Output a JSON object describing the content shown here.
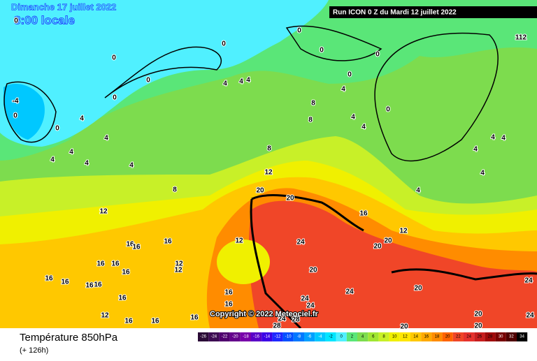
{
  "header": {
    "date": "Dimanche 17 juillet 2022",
    "time": "8:00 locale",
    "run": "Run ICON 0 Z du Mardi 12 juillet 2022"
  },
  "copyright": "Copyright © 2022 Meteociel.fr",
  "footer": {
    "title": "Température 850hPa",
    "lead": "(+ 126h)"
  },
  "legend": {
    "ticks": [
      -26,
      -24,
      -22,
      -20,
      -18,
      -16,
      -14,
      -12,
      -10,
      -8,
      -6,
      -4,
      -2,
      0,
      2,
      4,
      6,
      8,
      10,
      12,
      14,
      16,
      18,
      20,
      22,
      24,
      26,
      28,
      30,
      32,
      34
    ],
    "colors": [
      "#2a0a36",
      "#3c0a52",
      "#50006e",
      "#64008c",
      "#7800aa",
      "#5a00c8",
      "#3c00e6",
      "#1e28ff",
      "#0050ff",
      "#0078ff",
      "#00a0ff",
      "#00c8ff",
      "#00e6ff",
      "#50f0ff",
      "#5ae678",
      "#7ddc4e",
      "#a0e632",
      "#c8f028",
      "#f0f000",
      "#ffe600",
      "#ffc800",
      "#ffaa00",
      "#ff8c00",
      "#ff6400",
      "#f04628",
      "#e6322d",
      "#c81e1e",
      "#a00a0a",
      "#780000",
      "#500000",
      "#000000"
    ]
  },
  "contour_labels": [
    0,
    0,
    0,
    0,
    0,
    0,
    0,
    0,
    0,
    0,
    0,
    0,
    -4,
    4,
    4,
    4,
    4,
    4,
    4,
    4,
    4,
    4,
    4,
    4,
    4,
    4,
    4,
    4,
    4,
    4,
    8,
    8,
    8,
    8,
    12,
    12,
    12,
    12,
    12,
    12,
    12,
    16,
    16,
    16,
    16,
    16,
    16,
    16,
    16,
    16,
    16,
    16,
    16,
    16,
    16,
    16,
    16,
    16,
    20,
    20,
    20,
    20,
    20,
    20,
    20,
    20,
    20,
    24,
    24,
    24,
    24,
    24,
    24,
    24,
    28,
    28,
    112
  ]
}
